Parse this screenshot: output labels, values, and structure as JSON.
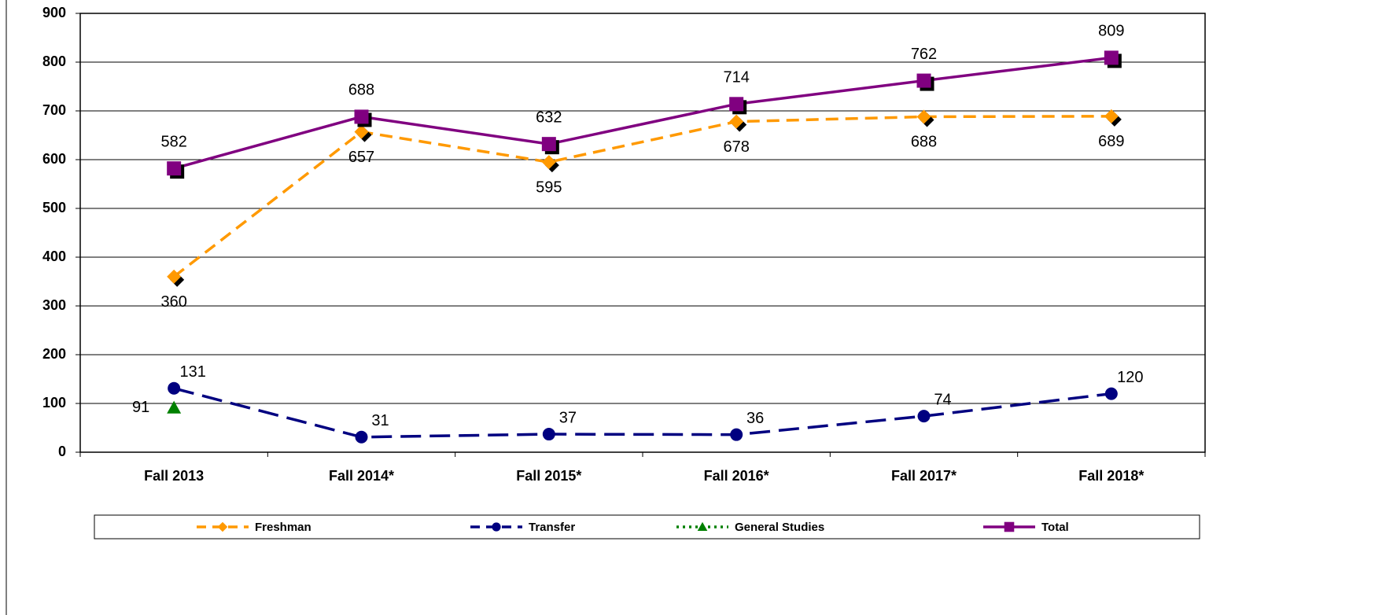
{
  "chart_data": {
    "type": "line",
    "categories": [
      "Fall 2013",
      "Fall 2014*",
      "Fall 2015*",
      "Fall 2016*",
      "Fall 2017*",
      "Fall 2018*"
    ],
    "series": [
      {
        "name": "Freshman",
        "color": "#ff9900",
        "marker": "diamond",
        "dash": "dashed",
        "values": [
          360,
          657,
          595,
          678,
          688,
          689
        ]
      },
      {
        "name": "Transfer",
        "color": "#000080",
        "marker": "circle",
        "dash": "longdash",
        "values": [
          131,
          31,
          37,
          36,
          74,
          120
        ]
      },
      {
        "name": "General Studies",
        "color": "#008000",
        "marker": "triangle",
        "dash": "dotted",
        "values": [
          91,
          null,
          null,
          null,
          null,
          null
        ]
      },
      {
        "name": "Total",
        "color": "#800080",
        "marker": "square",
        "dash": "solid",
        "values": [
          582,
          688,
          632,
          714,
          762,
          809
        ]
      }
    ],
    "ylim": [
      0,
      900
    ],
    "yticks": [
      0,
      100,
      200,
      300,
      400,
      500,
      600,
      700,
      800,
      900
    ],
    "grid": true,
    "legend": "bottom"
  }
}
